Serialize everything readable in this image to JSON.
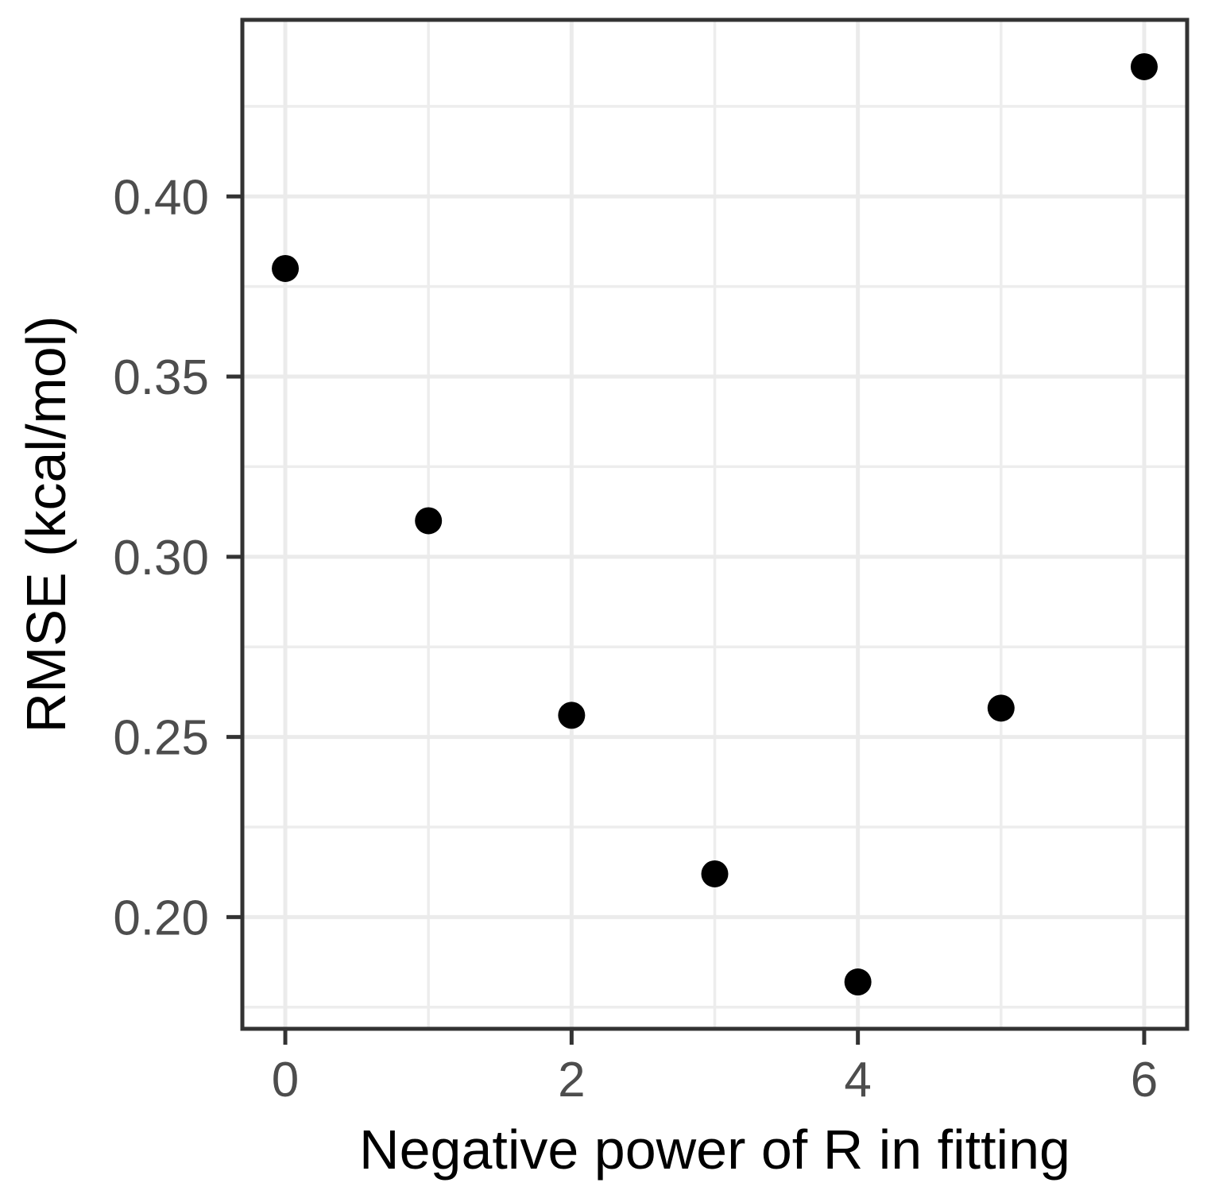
{
  "chart_data": {
    "type": "scatter",
    "title": "",
    "xlabel": "Negative power of R in fitting",
    "ylabel": "RMSE (kcal/mol)",
    "x": [
      0,
      1,
      2,
      3,
      4,
      5,
      6
    ],
    "y": [
      0.38,
      0.31,
      0.256,
      0.212,
      0.182,
      0.258,
      0.436
    ],
    "xlim": [
      -0.3,
      6.3
    ],
    "ylim": [
      0.169,
      0.449
    ],
    "x_ticks": {
      "values": [
        0,
        2,
        4,
        6
      ],
      "labels": [
        "0",
        "2",
        "4",
        "6"
      ]
    },
    "y_ticks": {
      "values": [
        0.2,
        0.25,
        0.3,
        0.35,
        0.4
      ],
      "labels": [
        "0.20",
        "0.25",
        "0.30",
        "0.35",
        "0.40"
      ]
    },
    "x_minor_ticks": [
      1,
      3,
      5
    ],
    "y_minor_ticks": [
      0.175,
      0.225,
      0.275,
      0.325,
      0.375,
      0.425
    ],
    "grid": "major+minor",
    "legend": "none",
    "style": {
      "point_color": "#000000",
      "point_radius_px": 17,
      "panel_border_color": "#333333",
      "grid_major_color": "#EBEBEB",
      "grid_minor_color": "#EDEDED",
      "tick_mark_color": "#333333",
      "tick_label_color": "#4D4D4D",
      "axis_title_color": "#000000",
      "panel_background": "#FFFFFF"
    }
  }
}
